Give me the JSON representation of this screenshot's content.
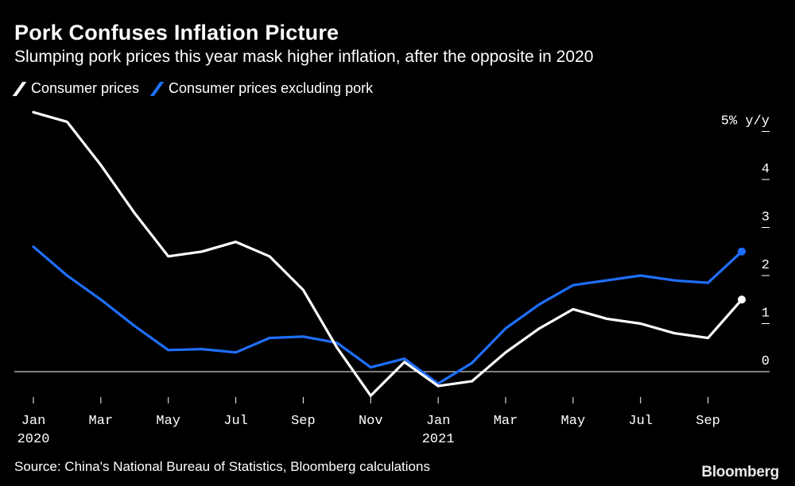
{
  "header": {
    "title": "Pork Confuses Inflation Picture",
    "subtitle": "Slumping pork prices this year mask higher inflation, after the opposite in 2020"
  },
  "footer": {
    "source": "Source: China's National Bureau of Statistics, Bloomberg calculations",
    "logo": "Bloomberg"
  },
  "colors": {
    "background": "#000000",
    "cpi": "#ffffff",
    "cpi_ex_pork": "#1f6fff"
  },
  "chart_data": {
    "type": "line",
    "title": "Pork Confuses Inflation Picture",
    "subtitle": "Slumping pork prices this year mask higher inflation, after the opposite in 2020",
    "y_unit_label": "5% y/y",
    "ylim": [
      -0.5,
      5.3
    ],
    "yticks": [
      0,
      1,
      2,
      3,
      4,
      5
    ],
    "ytick_labels": [
      "0",
      "1",
      "2",
      "3",
      "4",
      "5% y/y"
    ],
    "x": [
      "2020-01",
      "2020-02",
      "2020-03",
      "2020-04",
      "2020-05",
      "2020-06",
      "2020-07",
      "2020-08",
      "2020-09",
      "2020-10",
      "2020-11",
      "2020-12",
      "2021-01",
      "2021-02",
      "2021-03",
      "2021-04",
      "2021-05",
      "2021-06",
      "2021-07",
      "2021-08",
      "2021-09",
      "2021-10"
    ],
    "xtick_labels": [
      {
        "month": "2020-01",
        "label": "Jan",
        "year": "2020"
      },
      {
        "month": "2020-03",
        "label": "Mar",
        "year": ""
      },
      {
        "month": "2020-05",
        "label": "May",
        "year": ""
      },
      {
        "month": "2020-07",
        "label": "Jul",
        "year": ""
      },
      {
        "month": "2020-09",
        "label": "Sep",
        "year": ""
      },
      {
        "month": "2020-11",
        "label": "Nov",
        "year": ""
      },
      {
        "month": "2021-01",
        "label": "Jan",
        "year": "2021"
      },
      {
        "month": "2021-03",
        "label": "Mar",
        "year": ""
      },
      {
        "month": "2021-05",
        "label": "May",
        "year": ""
      },
      {
        "month": "2021-07",
        "label": "Jul",
        "year": ""
      },
      {
        "month": "2021-09",
        "label": "Sep",
        "year": ""
      }
    ],
    "series": [
      {
        "name": "Consumer prices",
        "color": "#ffffff",
        "values": [
          5.4,
          5.2,
          4.3,
          3.3,
          2.4,
          2.5,
          2.7,
          2.4,
          1.7,
          0.5,
          -0.5,
          0.2,
          -0.3,
          -0.2,
          0.4,
          0.9,
          1.3,
          1.1,
          1.0,
          0.8,
          0.7,
          1.5
        ]
      },
      {
        "name": "Consumer prices excluding pork",
        "color": "#1f6fff",
        "values": [
          2.6,
          2.0,
          1.5,
          0.95,
          0.45,
          0.47,
          0.4,
          0.7,
          0.73,
          0.6,
          0.09,
          0.27,
          -0.25,
          0.18,
          0.9,
          1.4,
          1.8,
          1.9,
          2.0,
          1.9,
          1.85,
          2.5
        ]
      }
    ],
    "grid": false,
    "legend_position": "top-left",
    "end_markers": true
  }
}
